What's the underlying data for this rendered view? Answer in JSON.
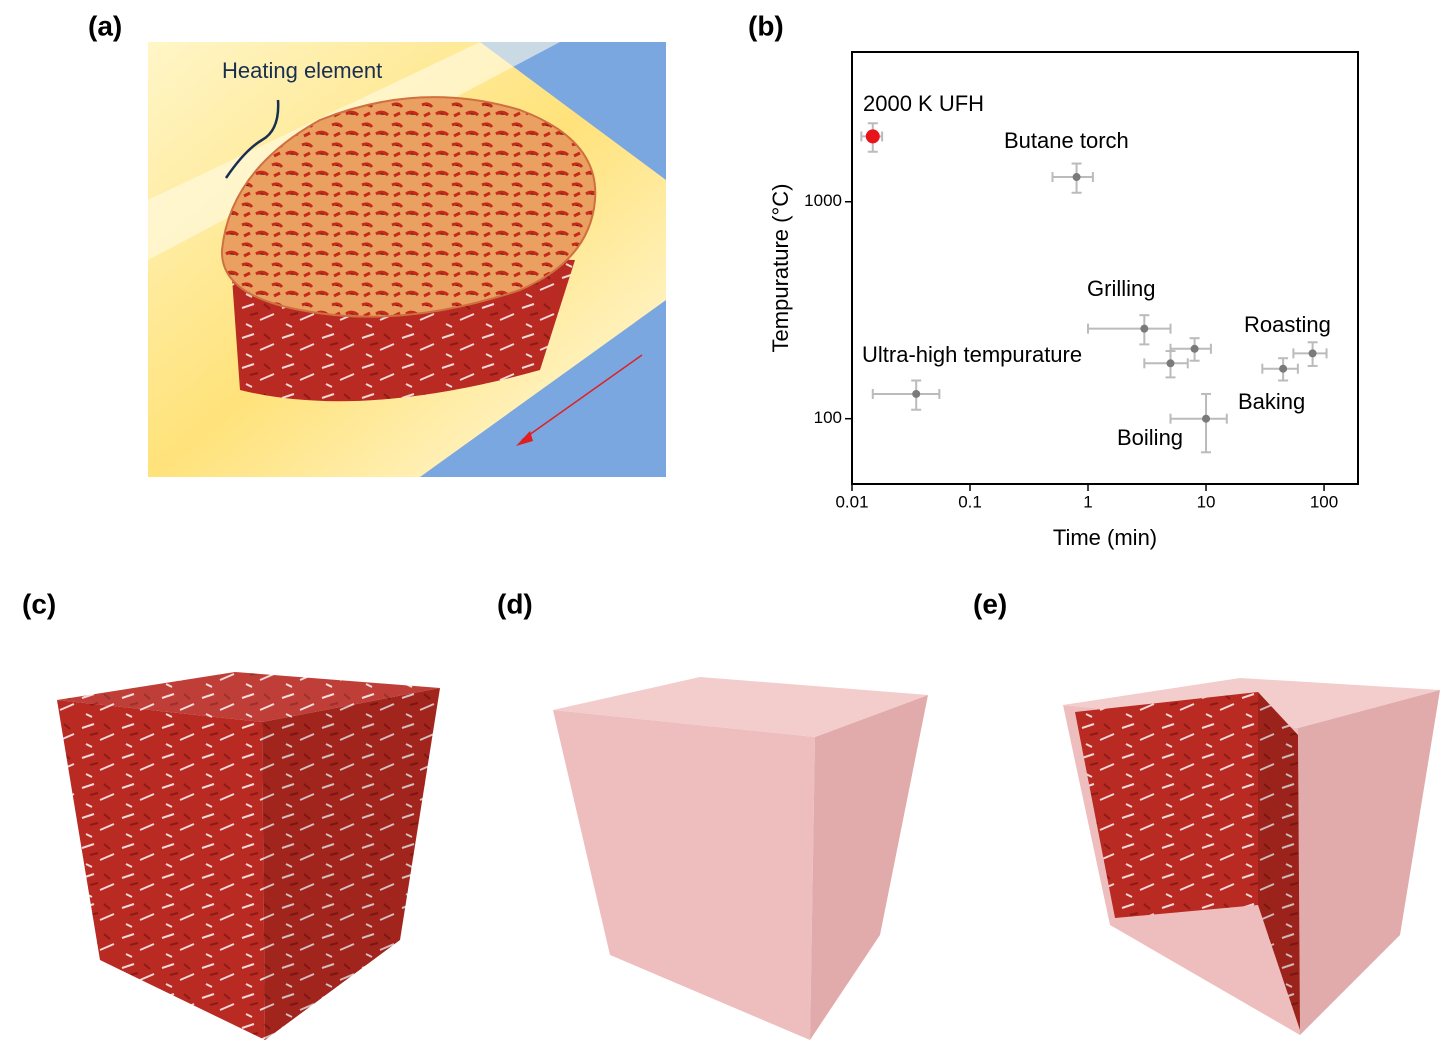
{
  "panel_labels": [
    "(a)",
    "(b)",
    "(c)",
    "(d)",
    "(e)"
  ],
  "panel_a": {
    "annotation": "Heating element"
  },
  "chart_data": {
    "type": "scatter",
    "xlabel": "Time (min)",
    "ylabel": "Tempurature (°C)",
    "xlim": [
      0.01,
      194
    ],
    "ylim": [
      50,
      4900
    ],
    "xscale": "log",
    "yscale": "log",
    "xticks": [
      0.01,
      0.1,
      1,
      10,
      100
    ],
    "yticks": [
      100,
      1000
    ],
    "series": [
      {
        "color": "#e8141c",
        "x": [
          0.015
        ],
        "values": [
          2000
        ],
        "xerr": [
          0.003
        ],
        "yerr": [
          300
        ]
      },
      {
        "color": "#7a7a7a",
        "x": [
          0.8,
          0.035,
          3,
          8,
          5,
          10,
          45,
          80
        ],
        "values": [
          1300,
          130,
          260,
          210,
          180,
          100,
          170,
          200
        ],
        "xerr": [
          0.3,
          0.02,
          2,
          3,
          2,
          5,
          15,
          25
        ],
        "yerr": [
          200,
          20,
          40,
          25,
          25,
          30,
          20,
          25
        ]
      }
    ],
    "annotations": [
      "2000 K UFH",
      "Butane torch",
      "Grilling",
      "Ultra-high tempurature",
      "Roasting",
      "Baking",
      "Boiling"
    ]
  }
}
